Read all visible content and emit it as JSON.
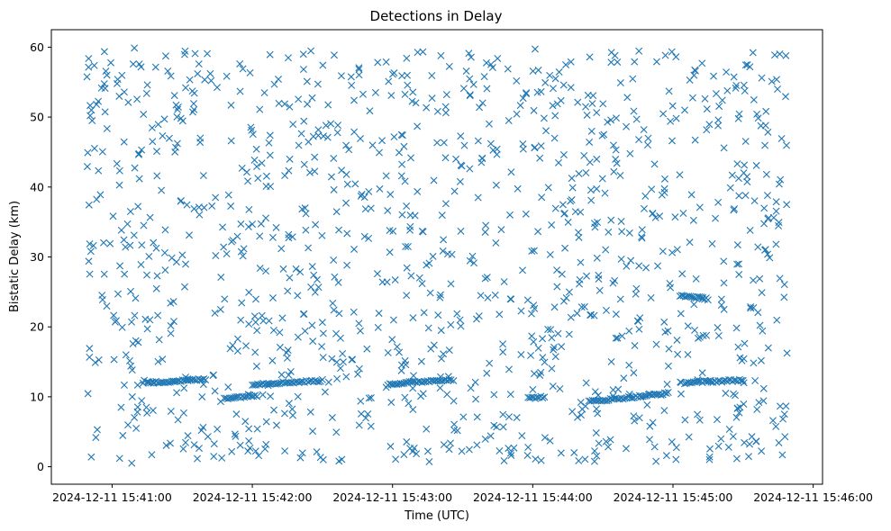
{
  "chart_data": {
    "type": "scatter",
    "title": "Detections in Delay",
    "xlabel": "Time (UTC)",
    "ylabel": "Bistatic Delay (km)",
    "marker": "x",
    "marker_color": "#1f77b4",
    "grid": false,
    "legend": "none",
    "xlim": [
      "2024-12-11 15:40:34",
      "2024-12-11 15:46:04"
    ],
    "ylim": [
      -2.5,
      62.5
    ],
    "x_ticks": [
      "2024-12-11 15:41:00",
      "2024-12-11 15:42:00",
      "2024-12-11 15:43:00",
      "2024-12-11 15:44:00",
      "2024-12-11 15:45:00",
      "2024-12-11 15:46:00"
    ],
    "y_ticks": [
      0,
      10,
      20,
      30,
      40,
      50,
      60
    ],
    "time_range": [
      "2024-12-11 15:40:49",
      "2024-12-11 15:45:49"
    ],
    "delay_range": [
      0.5,
      60
    ],
    "point_count_estimate": 1200,
    "tracks": [
      {
        "start": "2024-12-11 15:41:15",
        "end": "2024-12-11 15:41:40",
        "delay_start": 12.0,
        "delay_end": 12.5
      },
      {
        "start": "2024-12-11 15:41:48",
        "end": "2024-12-11 15:42:02",
        "delay_start": 9.8,
        "delay_end": 10.2
      },
      {
        "start": "2024-12-11 15:42:00",
        "end": "2024-12-11 15:42:30",
        "delay_start": 11.8,
        "delay_end": 12.3
      },
      {
        "start": "2024-12-11 15:42:58",
        "end": "2024-12-11 15:43:25",
        "delay_start": 11.8,
        "delay_end": 12.5
      },
      {
        "start": "2024-12-11 15:43:58",
        "end": "2024-12-11 15:44:05",
        "delay_start": 9.8,
        "delay_end": 10.0
      },
      {
        "start": "2024-12-11 15:44:24",
        "end": "2024-12-11 15:44:58",
        "delay_start": 9.3,
        "delay_end": 10.5
      },
      {
        "start": "2024-12-11 15:45:03",
        "end": "2024-12-11 15:45:15",
        "delay_start": 24.5,
        "delay_end": 24.0
      },
      {
        "start": "2024-12-11 15:45:05",
        "end": "2024-12-11 15:45:30",
        "delay_start": 12.0,
        "delay_end": 12.4
      }
    ]
  }
}
